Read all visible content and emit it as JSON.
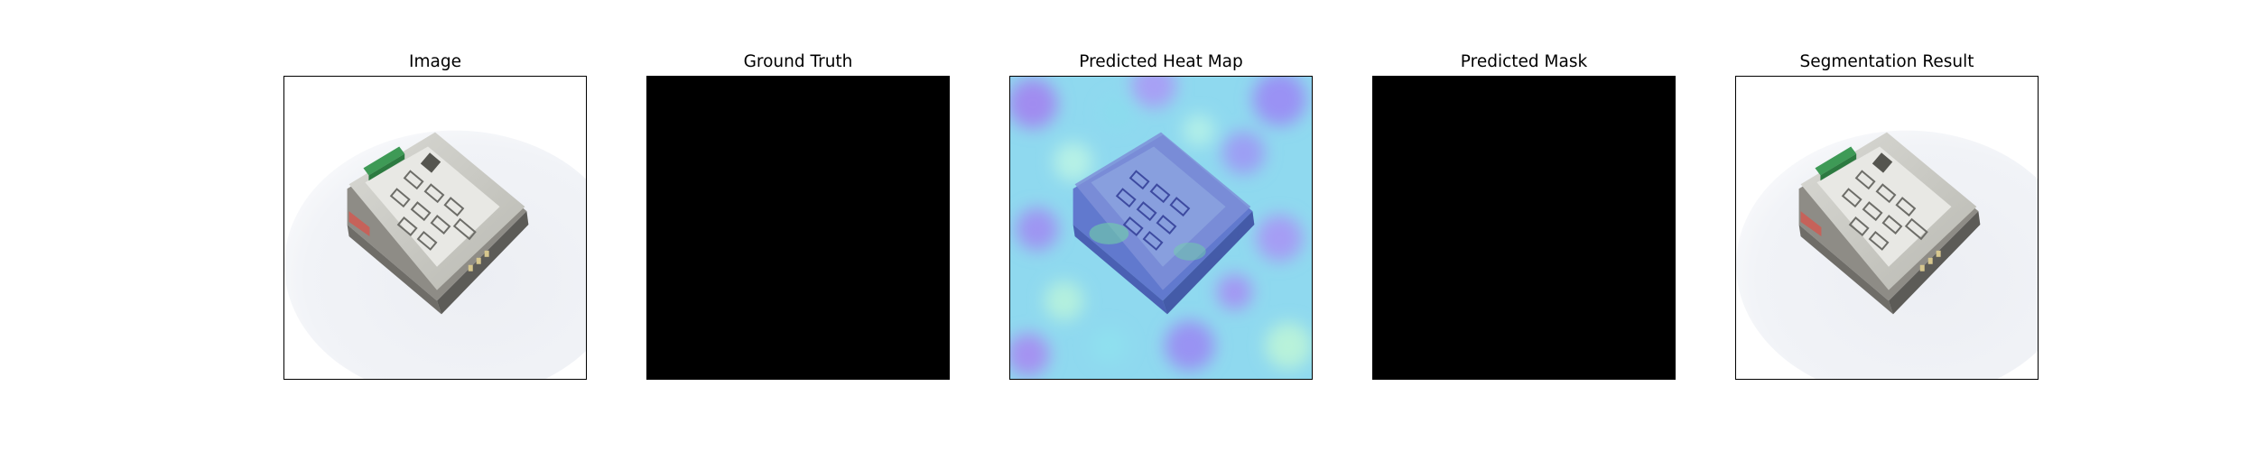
{
  "figure": {
    "panels": [
      {
        "title": "Image"
      },
      {
        "title": "Ground Truth"
      },
      {
        "title": "Predicted Heat Map"
      },
      {
        "title": "Predicted Mask"
      },
      {
        "title": "Segmentation Result"
      }
    ]
  }
}
